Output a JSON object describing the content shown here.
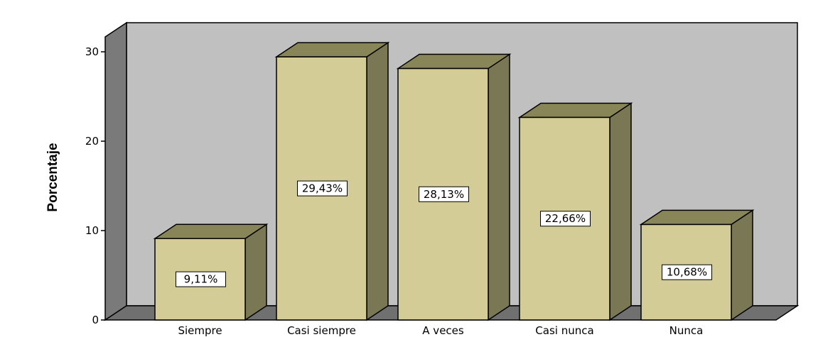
{
  "chart_data": {
    "type": "bar",
    "categories": [
      "Siempre",
      "Casi siempre",
      "A veces",
      "Casi nunca",
      "Nunca"
    ],
    "values": [
      9.11,
      29.43,
      28.13,
      22.66,
      10.68
    ],
    "data_labels": [
      "9,11%",
      "29,43%",
      "28,13%",
      "22,66%",
      "10,68%"
    ],
    "ylabel": "Porcentaje",
    "xlabel": "",
    "ylim": [
      0,
      30
    ],
    "yticks": [
      0,
      10,
      20,
      30
    ],
    "grid": false,
    "style": "3d",
    "colors": {
      "bar_front": "#d3cc96",
      "bar_side": "#7a7755",
      "bar_top": "#888559",
      "back_wall": "#c0c0c0",
      "side_wall": "#7a7a7a",
      "floor": "#707070",
      "page_background": "#ffffff"
    }
  }
}
